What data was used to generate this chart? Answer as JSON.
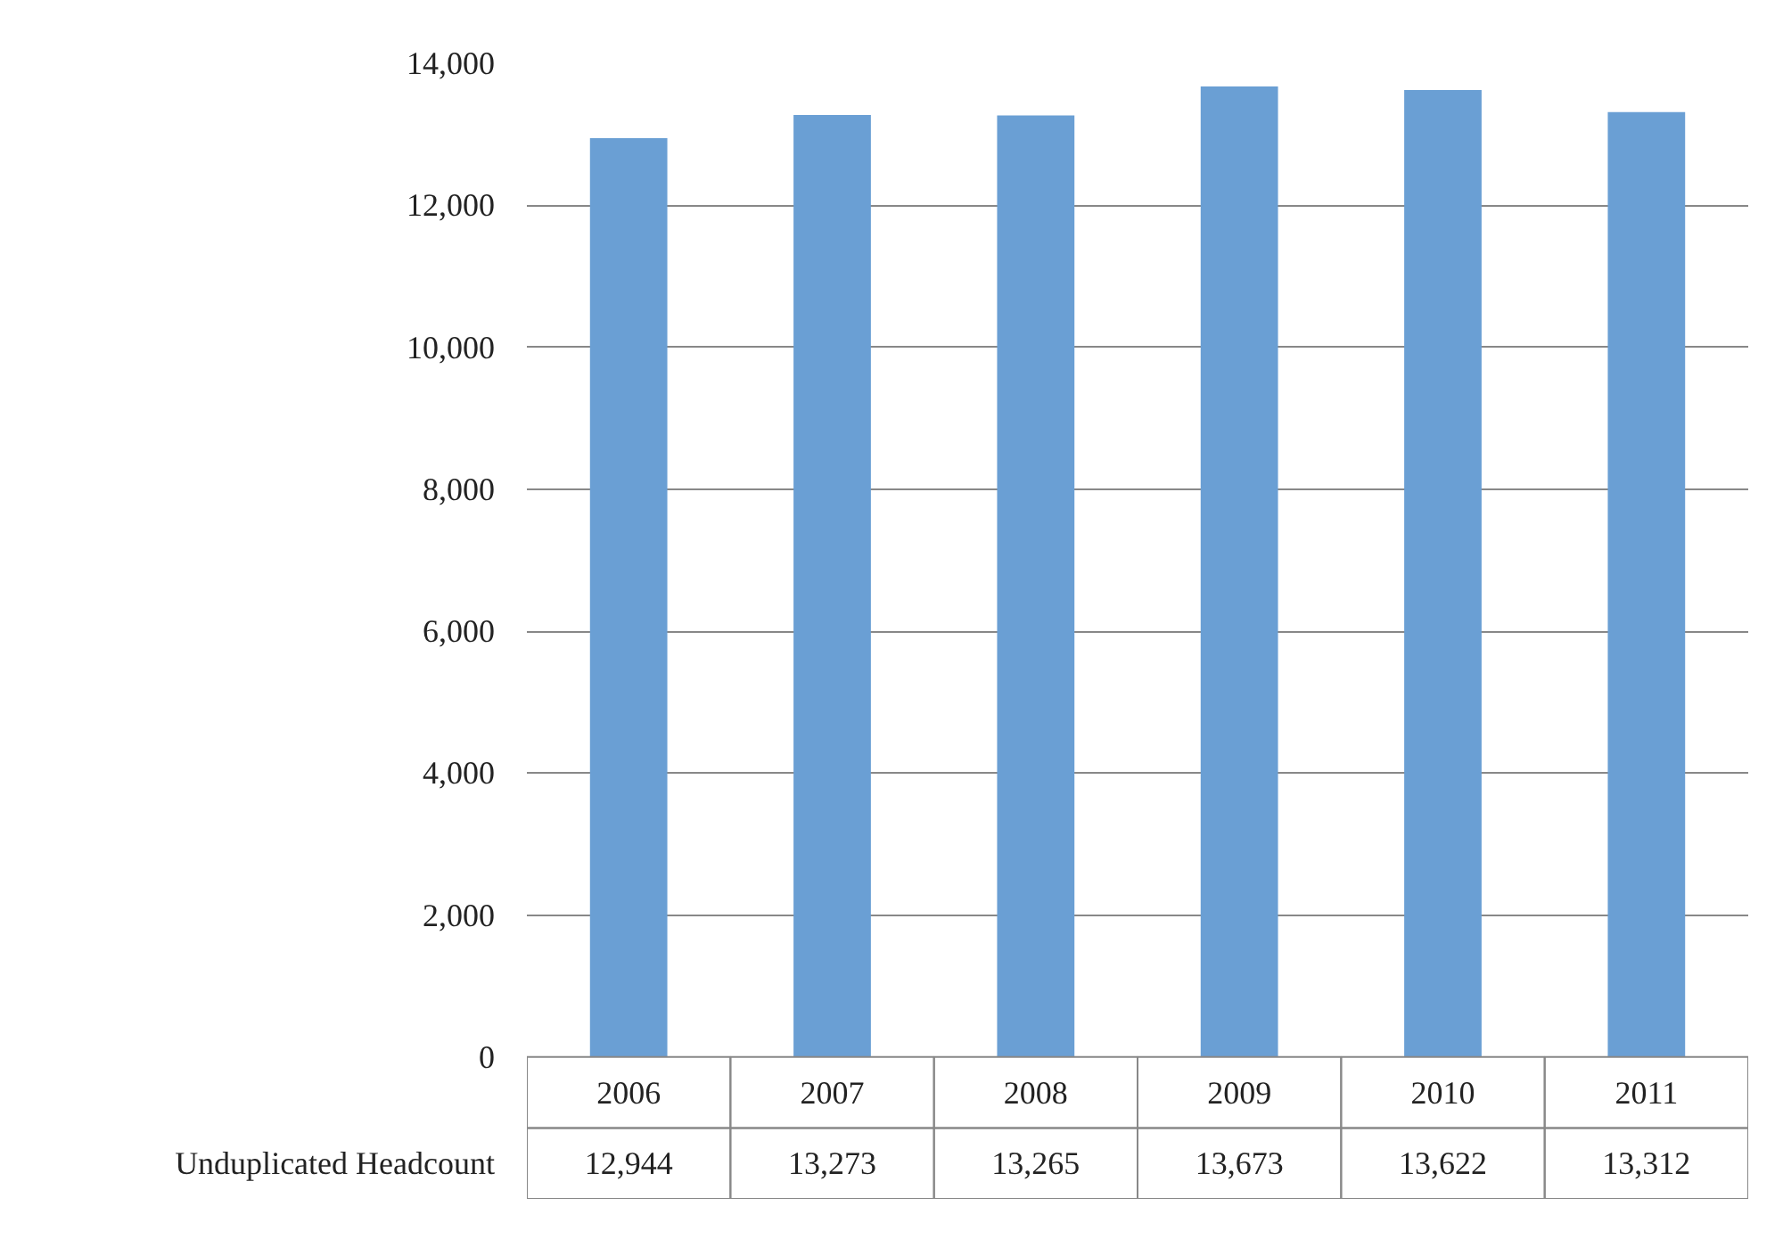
{
  "chart_data": {
    "type": "bar",
    "categories": [
      "2006",
      "2007",
      "2008",
      "2009",
      "2010",
      "2011"
    ],
    "series": [
      {
        "name": "Unduplicated Headcount",
        "color": "#6a9fd4",
        "values": [
          12944,
          13273,
          13265,
          13673,
          13622,
          13312
        ],
        "value_labels": [
          "12,944",
          "13,273",
          "13,265",
          "13,673",
          "13,622",
          "13,312"
        ]
      }
    ],
    "ylim": [
      0,
      14000
    ],
    "yticks": [
      {
        "value": 0,
        "label": "0"
      },
      {
        "value": 2000,
        "label": "2,000"
      },
      {
        "value": 4000,
        "label": "4,000"
      },
      {
        "value": 6000,
        "label": "6,000"
      },
      {
        "value": 8000,
        "label": "8,000"
      },
      {
        "value": 10000,
        "label": "10,000"
      },
      {
        "value": 12000,
        "label": "12,000"
      },
      {
        "value": 14000,
        "label": "14,000"
      }
    ],
    "grid": "y"
  }
}
